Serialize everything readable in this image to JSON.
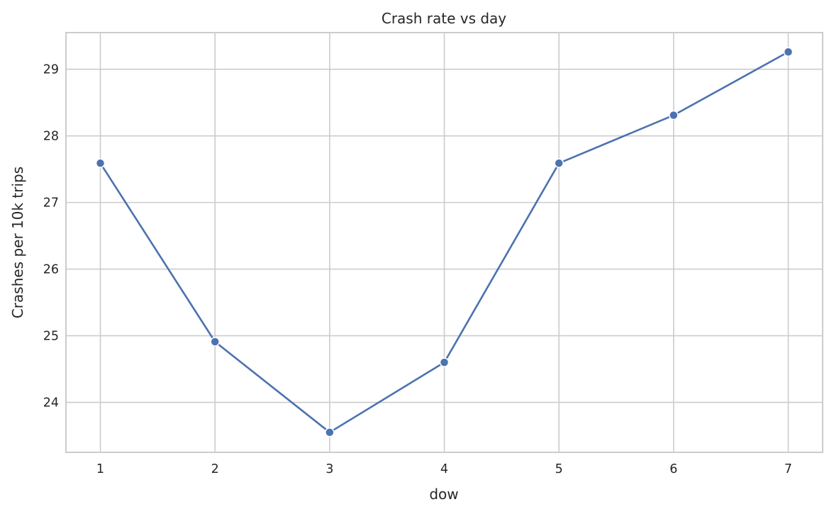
{
  "chart_data": {
    "type": "line",
    "title": "Crash rate vs day",
    "xlabel": "dow",
    "ylabel": "Crashes per 10k trips",
    "x": [
      1,
      2,
      3,
      4,
      5,
      6,
      7
    ],
    "series": [
      {
        "values": [
          27.59,
          24.91,
          23.55,
          24.6,
          27.59,
          28.31,
          29.26
        ],
        "color": "#4c72b0"
      }
    ],
    "xlim": [
      0.7,
      7.3
    ],
    "ylim": [
      23.25,
      29.55
    ],
    "xticks": [
      1,
      2,
      3,
      4,
      5,
      6,
      7
    ],
    "yticks": [
      24,
      25,
      26,
      27,
      28,
      29
    ],
    "grid": true,
    "marker": "circle",
    "legend": "none"
  }
}
